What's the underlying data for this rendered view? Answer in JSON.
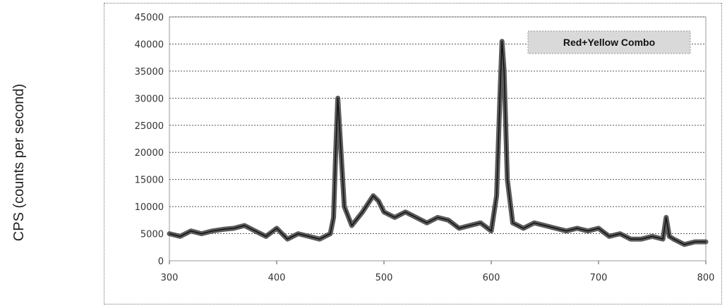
{
  "chart_data": {
    "type": "line",
    "title": "",
    "xlabel": "",
    "ylabel": "CPS (counts per second)",
    "xlim": [
      300,
      800
    ],
    "ylim": [
      0,
      45000
    ],
    "xticks": [
      "300",
      "400",
      "500",
      "600",
      "700",
      "800"
    ],
    "yticks": [
      "0",
      "5000",
      "10000",
      "15000",
      "20000",
      "25000",
      "30000",
      "35000",
      "40000",
      "45000"
    ],
    "grid": true,
    "legend_position": "top-right",
    "series": [
      {
        "name": "Red+Yellow Combo",
        "color": "#4a4a4a",
        "points": [
          [
            300,
            5000
          ],
          [
            310,
            4500
          ],
          [
            320,
            5500
          ],
          [
            330,
            5000
          ],
          [
            340,
            5500
          ],
          [
            350,
            5800
          ],
          [
            360,
            6000
          ],
          [
            370,
            6500
          ],
          [
            380,
            5500
          ],
          [
            390,
            4500
          ],
          [
            400,
            6000
          ],
          [
            410,
            4000
          ],
          [
            420,
            5000
          ],
          [
            430,
            4500
          ],
          [
            440,
            4000
          ],
          [
            450,
            5000
          ],
          [
            453,
            8000
          ],
          [
            455,
            20000
          ],
          [
            457,
            30000
          ],
          [
            460,
            20000
          ],
          [
            463,
            10000
          ],
          [
            470,
            6500
          ],
          [
            480,
            9000
          ],
          [
            490,
            12000
          ],
          [
            495,
            11000
          ],
          [
            500,
            9000
          ],
          [
            510,
            8000
          ],
          [
            520,
            9000
          ],
          [
            530,
            8000
          ],
          [
            540,
            7000
          ],
          [
            550,
            8000
          ],
          [
            560,
            7500
          ],
          [
            570,
            6000
          ],
          [
            580,
            6500
          ],
          [
            590,
            7000
          ],
          [
            600,
            5500
          ],
          [
            605,
            12000
          ],
          [
            608,
            30000
          ],
          [
            610,
            40500
          ],
          [
            612,
            35000
          ],
          [
            615,
            15000
          ],
          [
            620,
            7000
          ],
          [
            630,
            6000
          ],
          [
            640,
            7000
          ],
          [
            650,
            6500
          ],
          [
            660,
            6000
          ],
          [
            670,
            5500
          ],
          [
            680,
            6000
          ],
          [
            690,
            5500
          ],
          [
            700,
            6000
          ],
          [
            710,
            4500
          ],
          [
            720,
            5000
          ],
          [
            730,
            4000
          ],
          [
            740,
            4000
          ],
          [
            750,
            4500
          ],
          [
            760,
            4000
          ],
          [
            763,
            8000
          ],
          [
            766,
            4500
          ],
          [
            770,
            4000
          ],
          [
            780,
            3000
          ],
          [
            790,
            3500
          ],
          [
            800,
            3500
          ]
        ]
      }
    ]
  }
}
